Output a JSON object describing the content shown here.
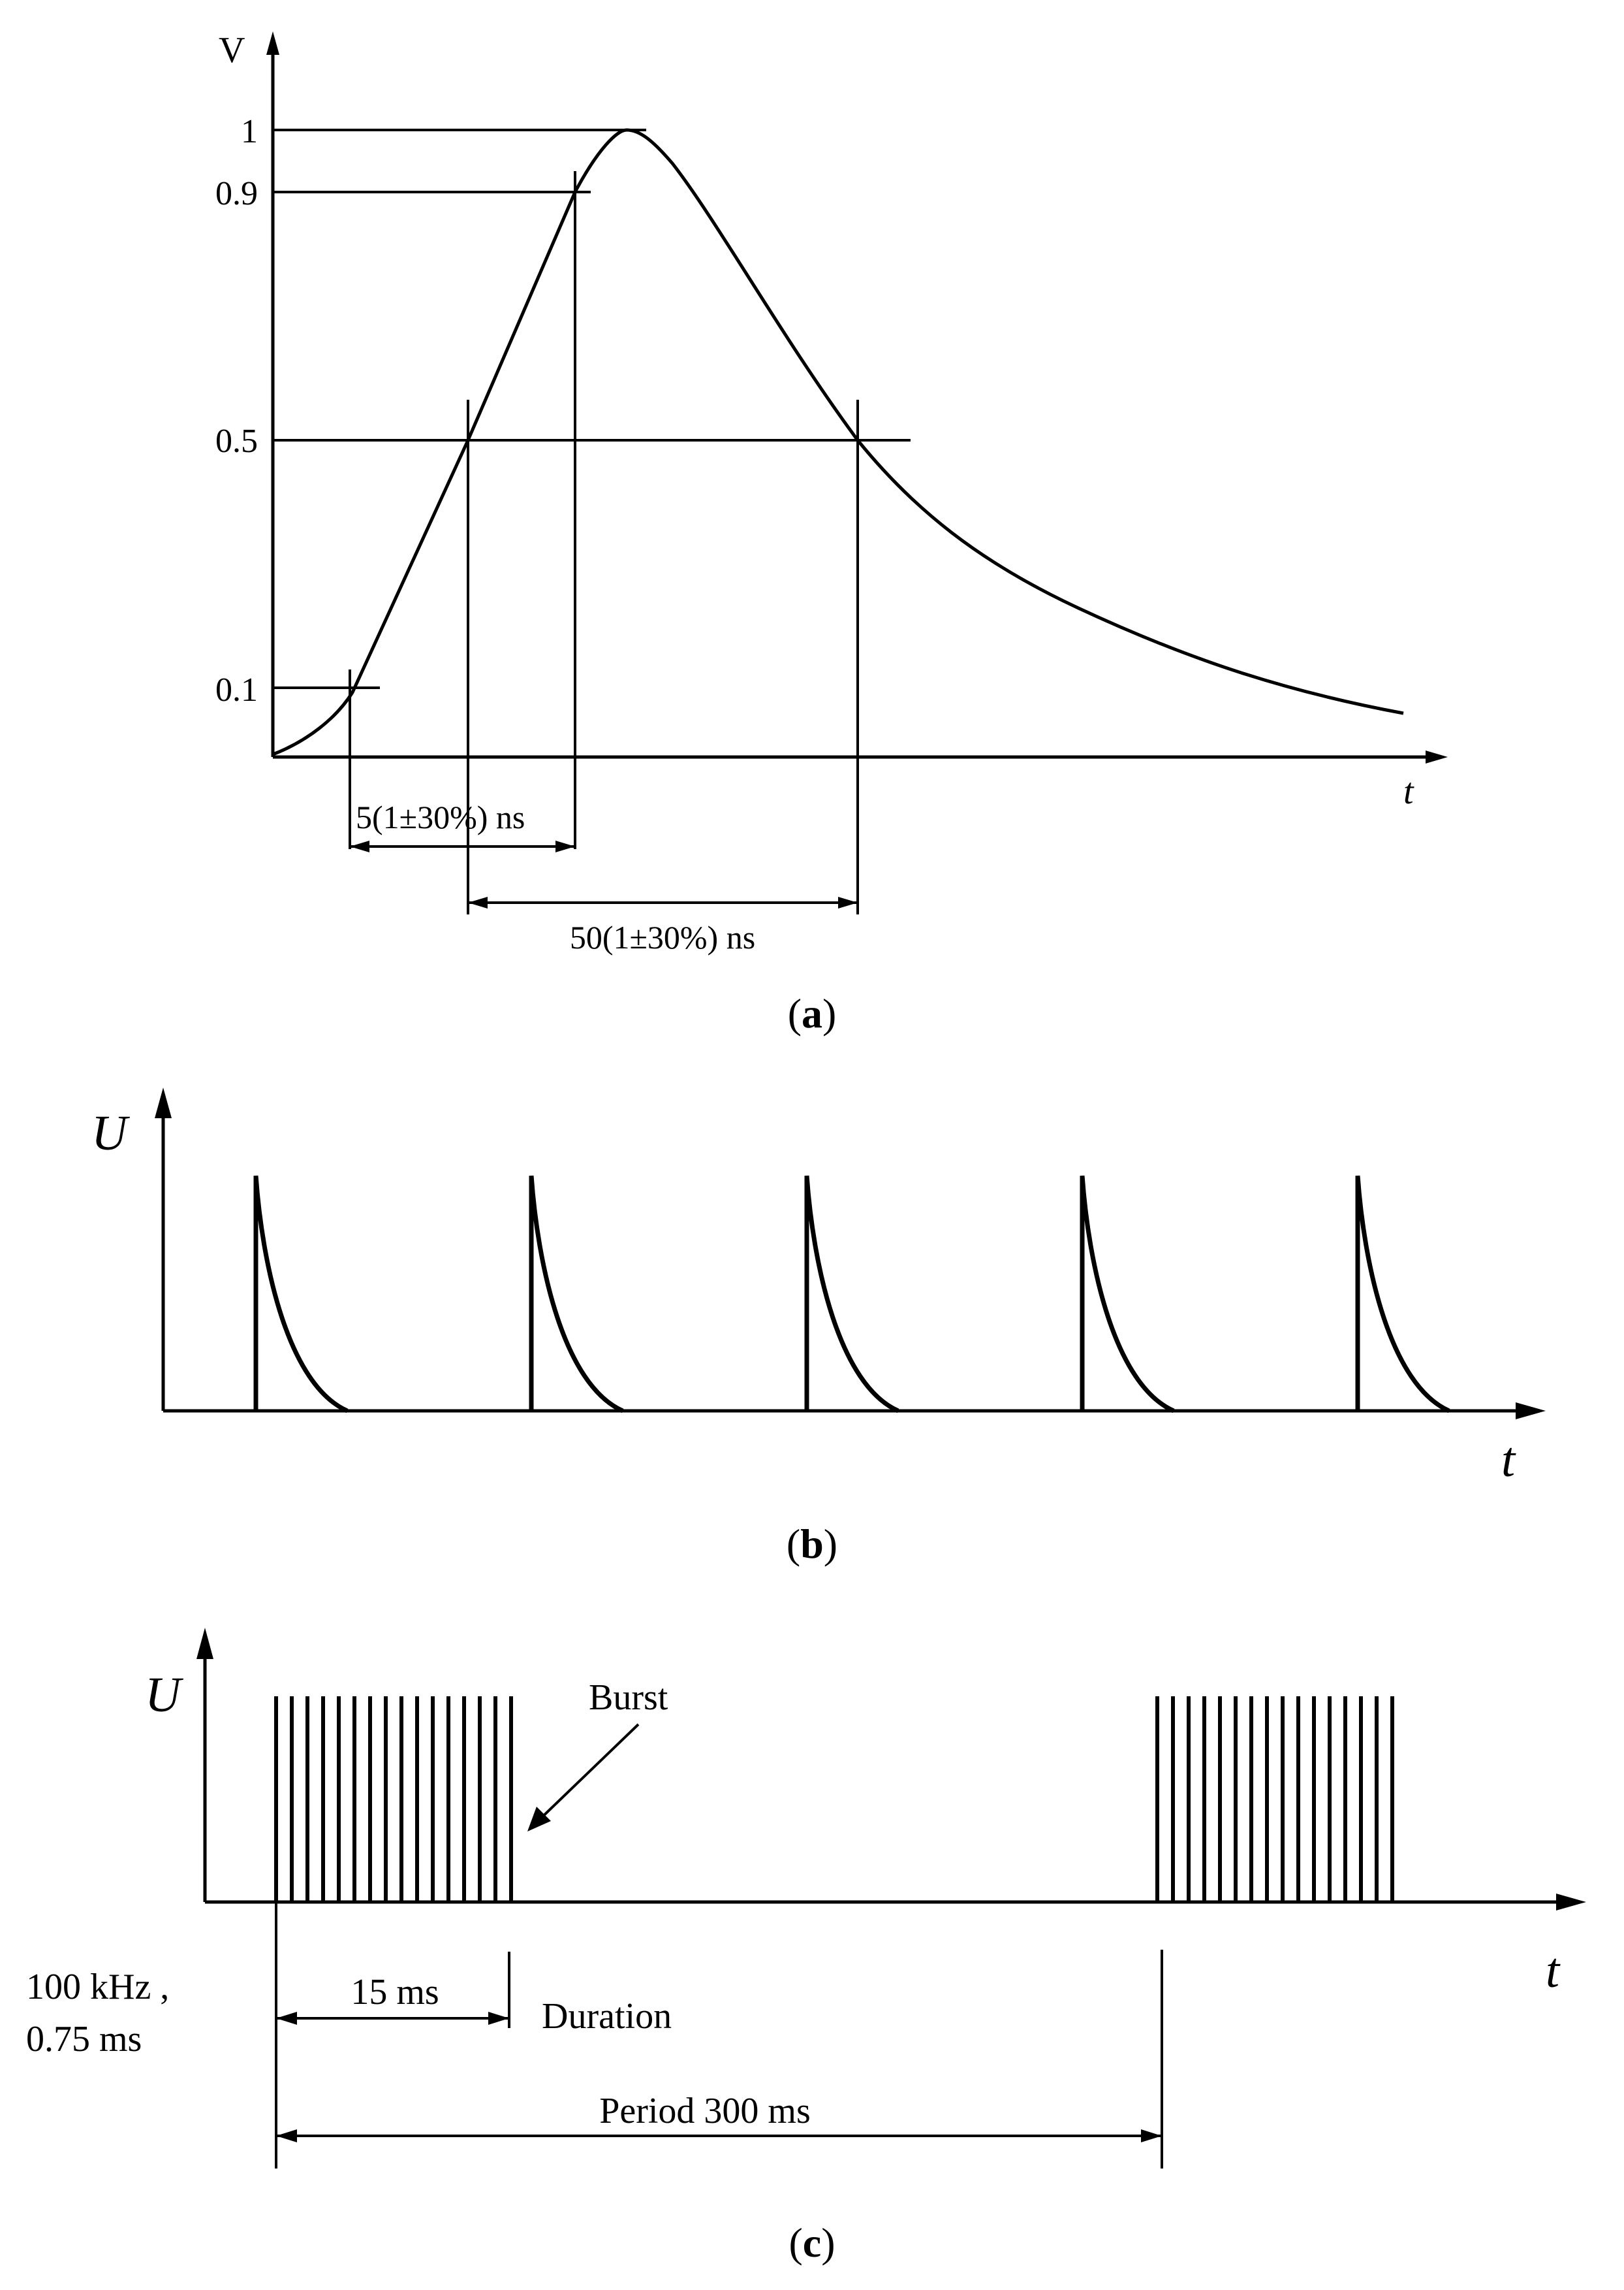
{
  "panel_a": {
    "caption_open": "(",
    "caption_letter": "a",
    "caption_close": ")",
    "y_axis_label": "V",
    "x_axis_label": "t",
    "y_ticks": [
      "1",
      "0.9",
      "0.5",
      "0.1"
    ],
    "rise_time_label": "5(1±30%) ns",
    "pulse_width_label": "50(1±30%) ns"
  },
  "panel_b": {
    "caption_open": "(",
    "caption_letter": "b",
    "caption_close": ")",
    "y_axis_label": "U",
    "x_axis_label": "t",
    "pulse_count": 5
  },
  "panel_c": {
    "caption_open": "(",
    "caption_letter": "c",
    "caption_close": ")",
    "y_axis_label": "U",
    "x_axis_label": "t",
    "burst_label": "Burst",
    "duration_value_label": "15 ms",
    "duration_label": "Duration",
    "frequency_label": "100 kHz ,",
    "spacing_label": "0.75 ms",
    "period_label": "Period 300 ms",
    "bursts": 2,
    "spikes_per_burst": 16
  }
}
